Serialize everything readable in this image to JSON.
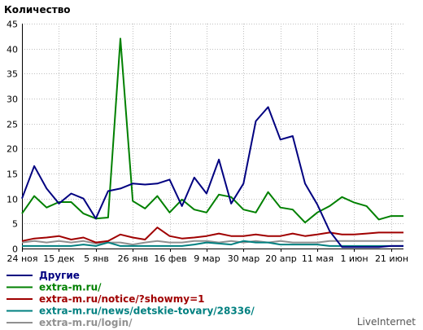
{
  "chart_data": {
    "type": "line",
    "title": "Количество",
    "ylim": [
      0,
      45
    ],
    "yticks": [
      0,
      5,
      10,
      15,
      20,
      25,
      30,
      35,
      40,
      45
    ],
    "grid": true,
    "legend_placement": "bottom-left",
    "x_tick_labels": [
      "24 ноя",
      "15 дек",
      "5 янв",
      "26 янв",
      "16 фев",
      "9 мар",
      "30 мар",
      "20 апр",
      "11 мая",
      "1 июн",
      "21 июн"
    ],
    "x_tick_index": [
      0,
      3,
      6,
      9,
      12,
      15,
      18,
      21,
      24,
      27,
      30
    ],
    "series": [
      {
        "name": "Другие",
        "color": "#000080",
        "values": [
          10,
          16.5,
          12,
          9,
          11,
          10,
          6,
          11.5,
          12,
          13,
          12.8,
          13,
          13.8,
          8.5,
          14.2,
          11,
          17.8,
          9,
          13,
          25.5,
          28.3,
          21.8,
          22.5,
          13,
          8.8,
          3.5,
          0.3,
          0.3,
          0.3,
          0.3,
          0.5,
          0.5
        ]
      },
      {
        "name": "extra-m.ru/",
        "color": "#008000",
        "values": [
          7,
          10.5,
          8.2,
          9.3,
          9.3,
          7,
          6,
          6.2,
          42,
          9.5,
          8,
          10.5,
          7.2,
          9.8,
          7.8,
          7.2,
          10.8,
          10.3,
          7.8,
          7.2,
          11.3,
          8.2,
          7.8,
          5.2,
          7.2,
          8.5,
          10.3,
          9.2,
          8.5,
          5.8,
          6.5,
          6.5
        ]
      },
      {
        "name": "extra-m.ru/notice/?showmy=1",
        "color": "#a00000",
        "values": [
          1.5,
          2,
          2.2,
          2.5,
          1.8,
          2.2,
          1.2,
          1.5,
          2.8,
          2.2,
          1.8,
          4.2,
          2.5,
          2,
          2.2,
          2.5,
          3,
          2.5,
          2.5,
          2.8,
          2.5,
          2.5,
          3,
          2.5,
          2.8,
          3.2,
          2.8,
          2.8,
          3,
          3.2,
          3.2,
          3.2
        ]
      },
      {
        "name": "extra-m.ru/news/detskie-tovary/28336/",
        "color": "#008080",
        "values": [
          0.5,
          0.5,
          0.5,
          0.5,
          0.5,
          0.8,
          0.5,
          1.2,
          0.5,
          0.5,
          0.5,
          0.5,
          0.5,
          0.5,
          0.8,
          1.2,
          1,
          0.8,
          1.5,
          1.2,
          1.2,
          0.8,
          0.8,
          0.8,
          0.8,
          0.5,
          0.5,
          0.5,
          0.5,
          0.5,
          0.5,
          0.5
        ]
      },
      {
        "name": "extra-m.ru/login/",
        "color": "#909090",
        "values": [
          1.2,
          1.5,
          1.2,
          1.5,
          1.2,
          1.5,
          1,
          1.2,
          1.2,
          0.8,
          1.2,
          1.5,
          1.2,
          1.2,
          1.5,
          1.5,
          1.2,
          1.5,
          1.2,
          1.5,
          1.2,
          1.5,
          1.2,
          1.2,
          1.2,
          1.5,
          1.5,
          1.5,
          1.5,
          1.5,
          1.5,
          1.5
        ]
      }
    ]
  },
  "watermark": "LiveInternet"
}
